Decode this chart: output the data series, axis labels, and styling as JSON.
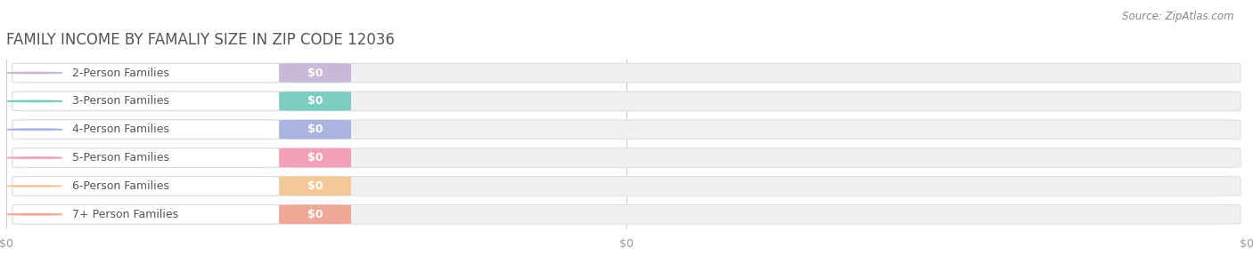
{
  "title": "FAMILY INCOME BY FAMALIY SIZE IN ZIP CODE 12036",
  "source_text": "Source: ZipAtlas.com",
  "categories": [
    "2-Person Families",
    "3-Person Families",
    "4-Person Families",
    "5-Person Families",
    "6-Person Families",
    "7+ Person Families"
  ],
  "values": [
    0,
    0,
    0,
    0,
    0,
    0
  ],
  "bar_colors": [
    "#c9b8d8",
    "#7dccc4",
    "#aab4e0",
    "#f4a0b8",
    "#f5c897",
    "#f0a898"
  ],
  "background_color": "#ffffff",
  "bar_bg_color": "#f0f0f2",
  "title_color": "#555555",
  "label_color": "#555555",
  "value_label": "$0",
  "x_tick_labels": [
    "$0",
    "$0",
    "$0"
  ],
  "x_tick_pos": [
    0,
    0.5,
    1.0
  ],
  "xlim": [
    0,
    1
  ],
  "figsize": [
    14.06,
    3.05
  ],
  "dpi": 100
}
